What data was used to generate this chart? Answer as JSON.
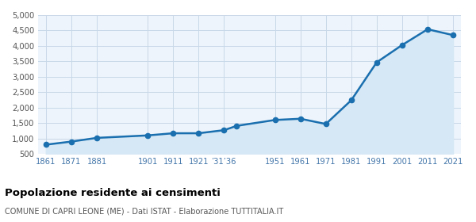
{
  "years": [
    1861,
    1871,
    1881,
    1901,
    1911,
    1921,
    1931,
    1936,
    1951,
    1961,
    1971,
    1981,
    1991,
    2001,
    2011,
    2021
  ],
  "population": [
    800,
    900,
    1020,
    1100,
    1170,
    1170,
    1270,
    1410,
    1600,
    1640,
    1470,
    2240,
    3470,
    4030,
    4540,
    4350
  ],
  "x_tick_years": [
    1861,
    1871,
    1881,
    1901,
    1911,
    1921,
    1931,
    1951,
    1961,
    1971,
    1981,
    1991,
    2001,
    2011,
    2021
  ],
  "x_tick_labels": [
    "1861",
    "1871",
    "1881",
    "1901",
    "1911",
    "1921",
    "’31’36",
    "1951",
    "1961",
    "1971",
    "1981",
    "1991",
    "2001",
    "2011",
    "2021"
  ],
  "line_color": "#1a6faf",
  "fill_color": "#d6e8f5",
  "marker_color": "#1a6faf",
  "grid_color": "#c8d8e8",
  "background_color": "#edf4fb",
  "title": "Popolazione residente ai censimenti",
  "subtitle": "COMUNE DI CAPRI LEONE (ME) - Dati ISTAT - Elaborazione TUTTITALIA.IT",
  "ylim": [
    500,
    5000
  ],
  "yticks": [
    500,
    1000,
    1500,
    2000,
    2500,
    3000,
    3500,
    4000,
    4500,
    5000
  ]
}
